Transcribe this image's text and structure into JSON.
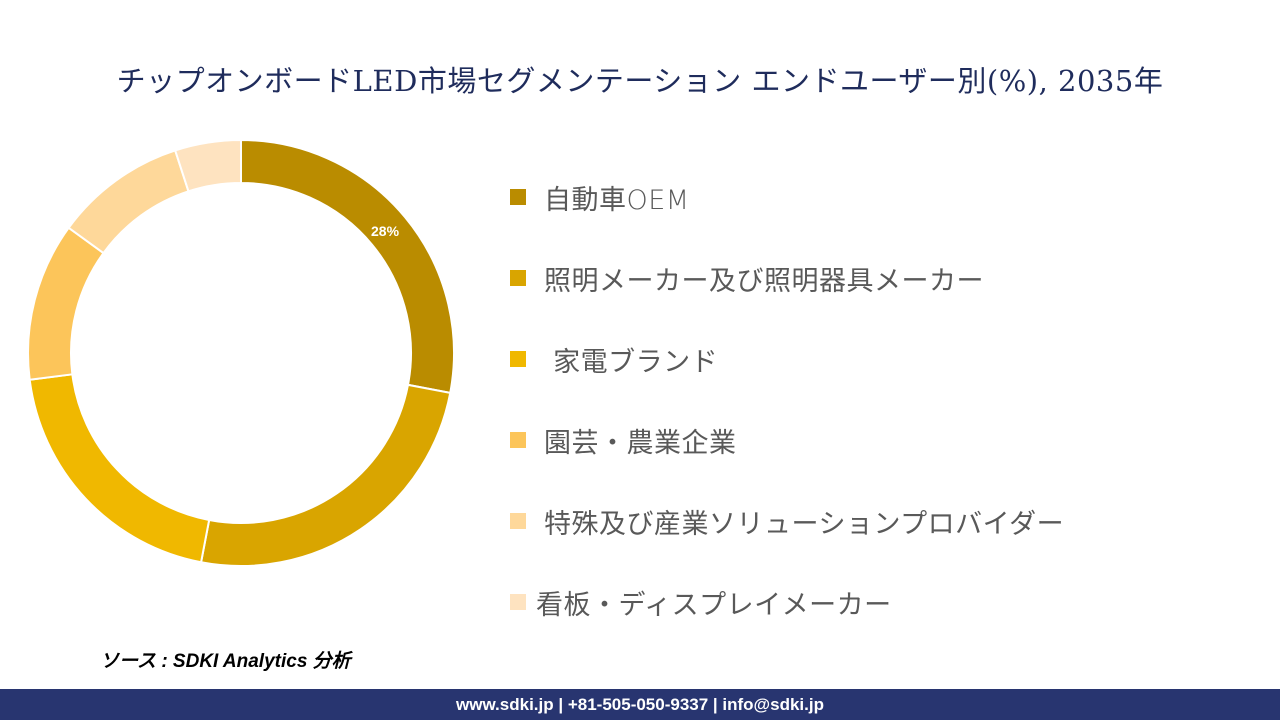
{
  "title": "チップオンボードLED市場セグメンテーション エンドユーザー別(%), 2035年",
  "chart_data": {
    "type": "pie",
    "variant": "donut",
    "title": "チップオンボードLED市場セグメンテーション エンドユーザー別(%), 2035年",
    "categories": [
      "自動車OEM",
      "照明メーカー及び照明器具メーカー",
      "家電ブランド",
      "園芸・農業企業",
      "特殊及び産業ソリューションプロバイダー",
      "看板・ディスプレイメーカー"
    ],
    "values": [
      28,
      25,
      20,
      12,
      10,
      5
    ],
    "unit": "%",
    "colors": [
      "#BA8C00",
      "#D9A500",
      "#F0B800",
      "#FCC55A",
      "#FED89A",
      "#FEE3C0"
    ],
    "data_labels": [
      {
        "category": "自動車OEM",
        "text": "28%"
      }
    ],
    "legend_position": "right"
  },
  "legend": [
    {
      "label": "自動車OEM",
      "color": "#BA8C00"
    },
    {
      "label": "照明メーカー及び照明器具メーカー",
      "color": "#D9A500"
    },
    {
      "label": " 家電ブランド",
      "color": "#F0B800"
    },
    {
      "label": "園芸・農業企業",
      "color": "#FCC55A"
    },
    {
      "label": "特殊及び産業ソリューションプロバイダー",
      "color": "#FED89A"
    },
    {
      "label": "看板・ディスプレイメーカー",
      "color": "#FEE3C0"
    }
  ],
  "data_label_first": "28%",
  "source": "ソース : SDKI Analytics 分析",
  "footer": "www.sdki.jp | +81-505-050-9337 | info@sdki.jp"
}
